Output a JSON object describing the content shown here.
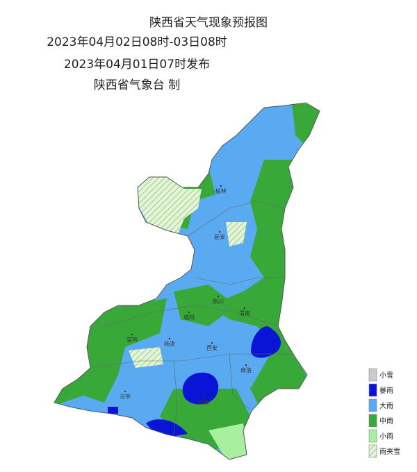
{
  "header": {
    "title": "陕西省天气现象预报图",
    "period": "2023年04月02日08时-03日08时",
    "issued": "2023年04月01日07时发布",
    "issuer": "陕西省气象台 制"
  },
  "map": {
    "cities": [
      "榆林",
      "延安",
      "铜川",
      "渭南",
      "咸阳",
      "宝鸡",
      "杨凌",
      "西安",
      "商洛",
      "汉中",
      "安康"
    ]
  },
  "legend": {
    "items": [
      {
        "label": "小雪",
        "color": "#cccccc"
      },
      {
        "label": "暴雨",
        "color": "#0a14d6"
      },
      {
        "label": "大雨",
        "color": "#5aaaf2"
      },
      {
        "label": "中雨",
        "color": "#38a838"
      },
      {
        "label": "小雨",
        "color": "#a8f0a0"
      },
      {
        "label": "雨夹雪",
        "color": "#d8f0c8",
        "hatch": true
      }
    ]
  }
}
